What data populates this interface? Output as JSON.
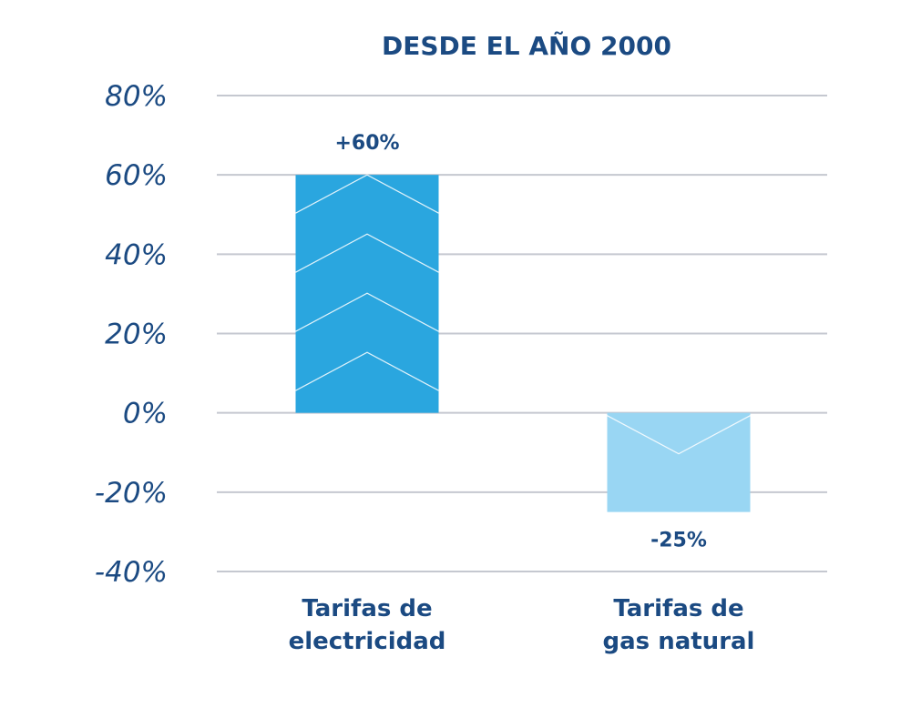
{
  "chart_data": {
    "type": "bar",
    "title": "DESDE EL AÑO 2000",
    "categories": [
      [
        "Tarifas de",
        "electricidad"
      ],
      [
        "Tarifas de",
        "gas natural"
      ]
    ],
    "values": [
      60,
      -25
    ],
    "data_labels": [
      "+60%",
      "-25%"
    ],
    "y_ticks": [
      "80%",
      "60%",
      "40%",
      "20%",
      "0%",
      "-20%",
      "-40%"
    ],
    "y_tick_values": [
      80,
      60,
      40,
      20,
      0,
      -20,
      -40
    ],
    "ylim": [
      -40,
      80
    ],
    "grid": true,
    "legend": "none",
    "colors": {
      "text": "#1b4a82",
      "grid": "#c5c8d0",
      "bars": [
        "#2aa6df",
        "#99d6f3"
      ],
      "chevron": "#ffffff"
    }
  }
}
